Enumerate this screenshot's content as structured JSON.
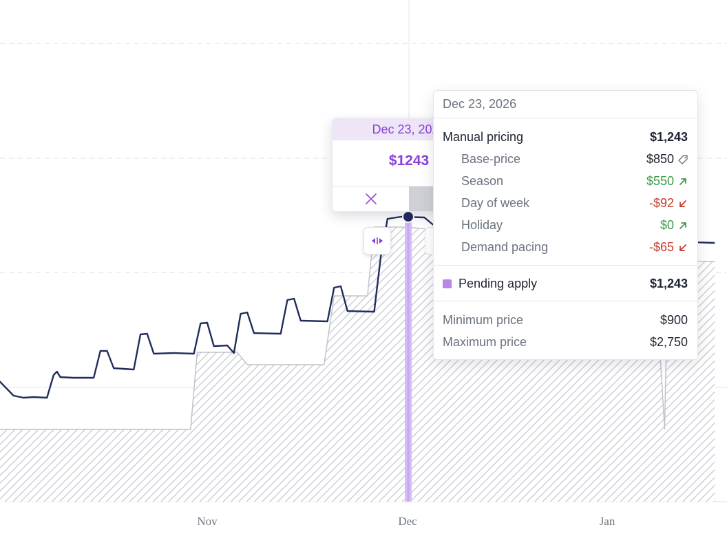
{
  "chart_data": {
    "type": "line",
    "x_axis": {
      "ticks": [
        "Nov",
        "Dec",
        "Jan"
      ]
    },
    "series": [
      {
        "role": "price",
        "color": "#1f2d5c",
        "values": [
          [
            -5,
            540
          ],
          [
            2,
            575
          ],
          [
            5,
            578
          ],
          [
            8,
            577
          ],
          [
            12,
            578
          ],
          [
            14,
            545
          ],
          [
            15,
            540
          ],
          [
            16,
            548
          ],
          [
            20,
            549
          ],
          [
            26,
            549
          ],
          [
            28,
            510
          ],
          [
            30,
            510
          ],
          [
            32,
            535
          ],
          [
            35,
            536
          ],
          [
            38,
            537
          ],
          [
            40,
            486
          ],
          [
            42,
            485
          ],
          [
            44,
            514
          ],
          [
            50,
            513
          ],
          [
            56,
            514
          ],
          [
            58,
            470
          ],
          [
            60,
            469
          ],
          [
            62,
            503
          ],
          [
            66,
            502
          ],
          [
            68,
            513
          ],
          [
            70,
            456
          ],
          [
            72,
            454
          ],
          [
            74,
            484
          ],
          [
            82,
            485
          ],
          [
            84,
            436
          ],
          [
            86,
            434
          ],
          [
            88,
            466
          ],
          [
            96,
            467
          ],
          [
            98,
            418
          ],
          [
            100,
            416
          ],
          [
            102,
            452
          ],
          [
            110,
            453
          ],
          [
            112,
            372
          ],
          [
            114,
            318
          ],
          [
            118,
            315
          ],
          [
            125,
            316
          ],
          [
            128,
            328
          ],
          [
            132,
            318
          ],
          [
            143,
            316
          ],
          [
            152,
            350
          ],
          [
            162,
            358
          ],
          [
            170,
            350
          ],
          [
            190,
            352
          ],
          [
            196,
            351
          ],
          [
            199,
            318
          ],
          [
            203,
            316
          ],
          [
            206,
            352
          ],
          [
            212,
            353
          ]
        ]
      },
      {
        "role": "minimum",
        "color": "#c0c3cc",
        "values": [
          [
            -5,
            624
          ],
          [
            55,
            624
          ],
          [
            57,
            512
          ],
          [
            69,
            512
          ],
          [
            72,
            530
          ],
          [
            95,
            530
          ],
          [
            98,
            430
          ],
          [
            108,
            430
          ],
          [
            110,
            330
          ],
          [
            120,
            330
          ],
          [
            140,
            340
          ],
          [
            150,
            360
          ],
          [
            188,
            360
          ],
          [
            194,
            380
          ],
          [
            197,
            624
          ],
          [
            198,
            380
          ],
          [
            212,
            380
          ]
        ]
      }
    ],
    "price_colors": {
      "price_line": "#1f2d5c",
      "pending": "#b987ea",
      "floor_fill": "#c9ccd4"
    }
  },
  "editor": {
    "date": "Dec 23, 2026",
    "value": "$1243",
    "cancel_icon": "close-icon",
    "confirm_icon": "check-icon",
    "stepper_icon": "chevron-up-down-icon",
    "handle_icon": "drag-horizontal-icon"
  },
  "tooltip": {
    "date": "Dec 23, 2026",
    "manual_pricing": {
      "label": "Manual pricing",
      "value": "$1,243"
    },
    "base_price": {
      "label": "Base-price",
      "value": "$850",
      "icon": "tag-icon"
    },
    "season": {
      "label": "Season",
      "value": "$550",
      "icon": "arrow-up-right-icon"
    },
    "day_of_week": {
      "label": "Day of week",
      "value": "-$92",
      "icon": "arrow-down-left-icon"
    },
    "holiday": {
      "label": "Holiday",
      "value": "$0",
      "icon": "arrow-up-right-icon"
    },
    "demand_pacing": {
      "label": "Demand pacing",
      "value": "-$65",
      "icon": "arrow-down-left-icon"
    },
    "pending_apply": {
      "label": "Pending apply",
      "value": "$1,243"
    },
    "minimum_price": {
      "label": "Minimum price",
      "value": "$900"
    },
    "maximum_price": {
      "label": "Maximum price",
      "value": "$2,750"
    }
  }
}
